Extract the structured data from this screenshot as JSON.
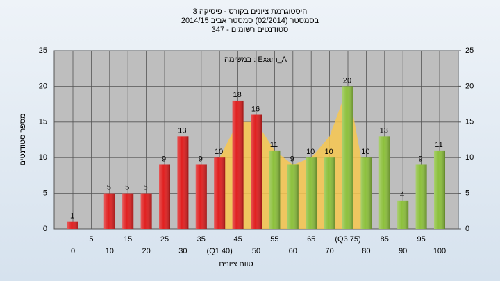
{
  "chart_data": {
    "type": "bar",
    "title": "היסטוגרמת ציונים בקורס - פיסיקה 3",
    "subtitle": "בסמסטר  (02/2014)  סמסטר אביב 2014/15",
    "subtitle2": "סטודנטים רשומים - 347",
    "annotation": "במשימה : Exam_A",
    "y_label": "מספר סטודנטים",
    "x_label": "טווח ציונים",
    "categories": [
      "0",
      "5",
      "10",
      "15",
      "20",
      "25",
      "30",
      "35",
      "(Q1 40)",
      "45",
      "50",
      "55",
      "60",
      "65",
      "70",
      "(Q3 75)",
      "80",
      "85",
      "90",
      "95",
      "100"
    ],
    "values": [
      1,
      null,
      5,
      5,
      5,
      9,
      13,
      9,
      10,
      18,
      16,
      11,
      9,
      10,
      10,
      20,
      10,
      13,
      4,
      9,
      11
    ],
    "colors": [
      "#e02020",
      "#e02020",
      "#e02020",
      "#e02020",
      "#e02020",
      "#e02020",
      "#e02020",
      "#e02020",
      "#e02020",
      "#e02020",
      "#e02020",
      "#8cc03c",
      "#8cc03c",
      "#8cc03c",
      "#8cc03c",
      "#8cc03c",
      "#8cc03c",
      "#8cc03c",
      "#8cc03c",
      "#8cc03c",
      "#8cc03c"
    ],
    "area_values": [
      null,
      null,
      null,
      null,
      null,
      null,
      null,
      null,
      10,
      15,
      15,
      11,
      9,
      10,
      13,
      20,
      6,
      null,
      null,
      null,
      null
    ],
    "area_color": "#f8c850",
    "ylim": [
      0,
      25
    ],
    "yticks": [
      0,
      5,
      10,
      15,
      20,
      25
    ],
    "y2lim": [
      0,
      25
    ],
    "y2ticks": [
      0,
      5,
      10,
      15,
      20,
      25
    ],
    "grid": true
  }
}
